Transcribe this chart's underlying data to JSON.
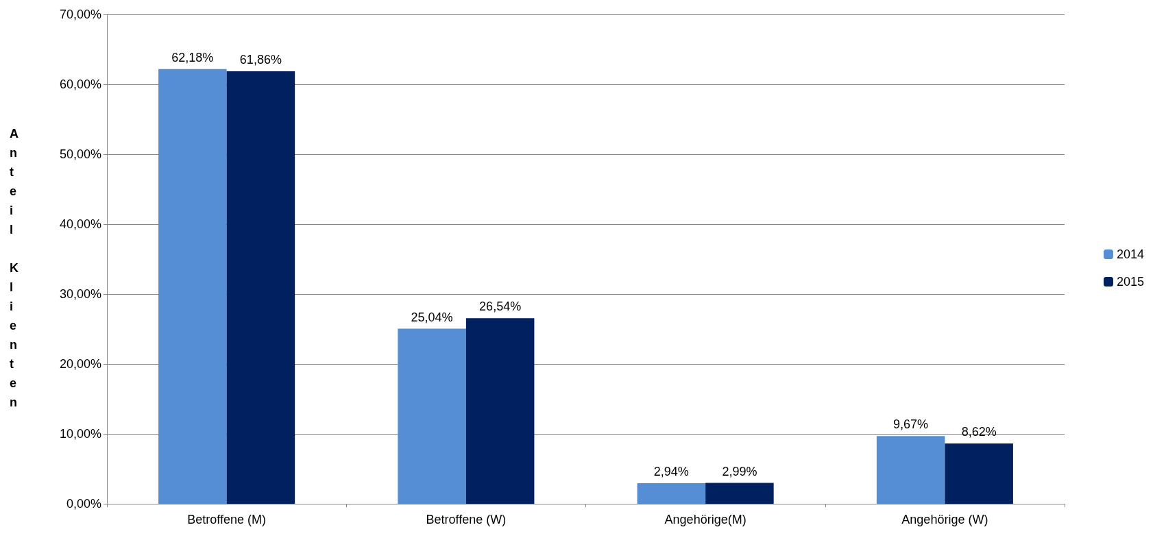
{
  "chart_data": {
    "type": "bar",
    "ylabel": "Anteil Klienten",
    "categories": [
      "Betroffene (M)",
      "Betroffene (W)",
      "Angehörige(M)",
      "Angehörige (W)"
    ],
    "series": [
      {
        "name": "2014",
        "color": "#558ed5",
        "values": [
          62.18,
          25.04,
          2.94,
          9.67
        ],
        "value_labels": [
          "62,18%",
          "25,04%",
          "2,94%",
          "9,67%"
        ]
      },
      {
        "name": "2015",
        "color": "#002060",
        "values": [
          61.86,
          26.54,
          2.99,
          8.62
        ],
        "value_labels": [
          "61,86%",
          "26,54%",
          "2,99%",
          "8,62%"
        ]
      }
    ],
    "ylim": [
      0,
      70
    ],
    "yticks": [
      {
        "value": 0,
        "label": "0,00%"
      },
      {
        "value": 10,
        "label": "10,00%"
      },
      {
        "value": 20,
        "label": "20,00%"
      },
      {
        "value": 30,
        "label": "30,00%"
      },
      {
        "value": 40,
        "label": "40,00%"
      },
      {
        "value": 50,
        "label": "50,00%"
      },
      {
        "value": 60,
        "label": "60,00%"
      },
      {
        "value": 70,
        "label": "70,00%"
      }
    ],
    "grid": "y",
    "legend": "right"
  }
}
